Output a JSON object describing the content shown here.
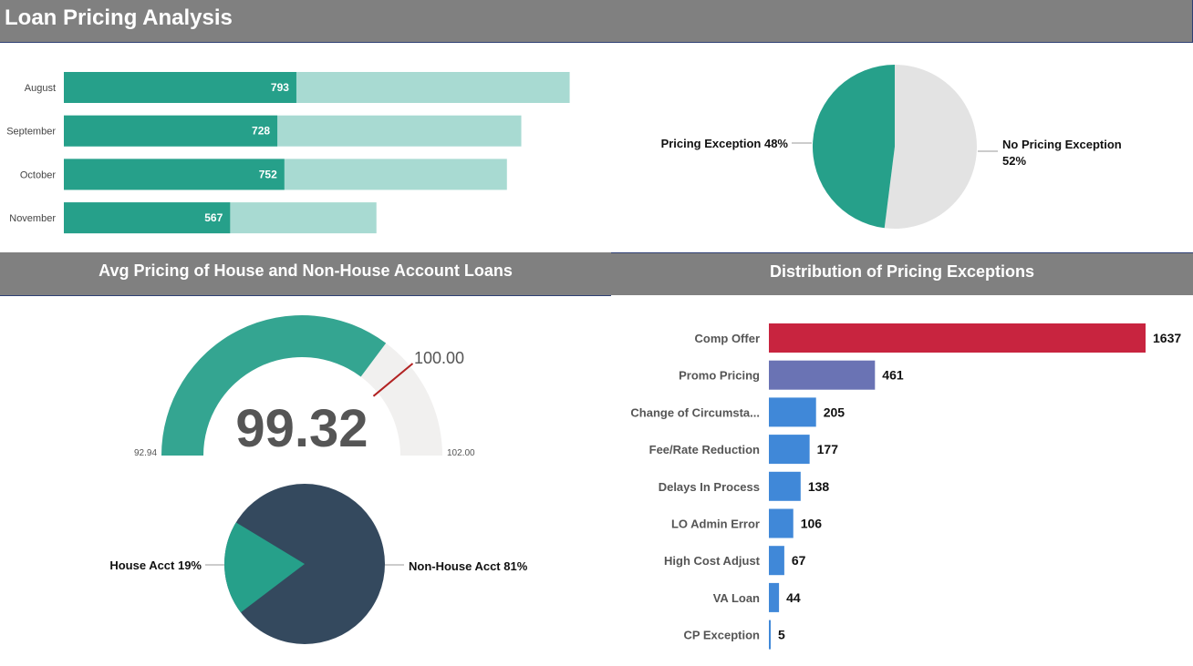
{
  "page": {
    "title": "Loan Pricing Analysis"
  },
  "sections": {
    "house_title": "Avg Pricing of House and Non-House Account Loans",
    "exceptions_title": "Distribution of Pricing Exceptions"
  },
  "colors": {
    "teal": "#26a08a",
    "teal_light": "#a8dad2",
    "gray_slice": "#e3e3e3",
    "navy": "#34495e",
    "gauge_teal": "#34a591",
    "gauge_bg": "#f1f0ef",
    "target_red": "#b22222",
    "crimson": "#c8243f",
    "purple": "#6a73b4",
    "blue": "#4088d8"
  },
  "chart_data": [
    {
      "type": "bar",
      "orientation": "horizontal",
      "categories": [
        "August",
        "September",
        "October",
        "November"
      ],
      "series": [
        {
          "values": [
            793,
            728,
            752,
            567
          ]
        },
        {
          "values": [
            1725,
            1560,
            1511,
            1066
          ]
        }
      ]
    },
    {
      "type": "pie",
      "labels": [
        "Pricing Exception 48%",
        "No Pricing Exception 52%"
      ],
      "values": [
        48,
        52
      ]
    },
    {
      "type": "gauge",
      "value": 99.32,
      "value_label": "99.32",
      "min": 92.94,
      "min_label": "92.94",
      "max": 102.0,
      "max_label": "102.00",
      "target": 100.0,
      "target_label": "100.00"
    },
    {
      "type": "pie",
      "labels": [
        "House Acct 19%",
        "Non-House Acct 81%"
      ],
      "values": [
        19,
        81
      ]
    },
    {
      "type": "bar",
      "orientation": "horizontal",
      "categories": [
        "Comp Offer",
        "Promo Pricing",
        "Change of Circumsta...",
        "Fee/Rate Reduction",
        "Delays In Process",
        "LO Admin Error",
        "High Cost Adjust",
        "VA Loan",
        "CP Exception"
      ],
      "values": [
        1637,
        461,
        205,
        177,
        138,
        106,
        67,
        44,
        5
      ]
    }
  ]
}
